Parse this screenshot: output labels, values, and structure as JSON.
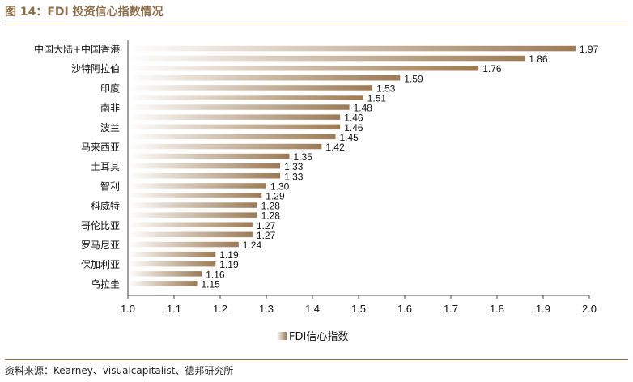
{
  "header": {
    "title": "图 14：FDI 投资信心指数情况"
  },
  "footer": {
    "source": "资料来源：Kearney、visualcapitalist、德邦研究所"
  },
  "colors": {
    "bar_dark": "#9c7a54",
    "bar_light": "#ffffff",
    "text": "#111111",
    "accent": "#8c6f4a"
  },
  "chart_data": {
    "type": "bar",
    "orientation": "horizontal",
    "title": "",
    "xlabel": "",
    "ylabel": "",
    "xlim": [
      1.0,
      2.0
    ],
    "xticks": [
      "1.0",
      "1.1",
      "1.2",
      "1.3",
      "1.4",
      "1.5",
      "1.6",
      "1.7",
      "1.8",
      "1.9",
      "2.0"
    ],
    "legend": "FDI信心指数",
    "legend_position": "bottom",
    "categories": [
      "中国大陆+中国香港",
      "",
      "沙特阿拉伯",
      "",
      "印度",
      "",
      "南非",
      "",
      "波兰",
      "",
      "马来西亚",
      "",
      "土耳其",
      "",
      "智利",
      "",
      "科威特",
      "",
      "哥伦比亚",
      "",
      "罗马尼亚",
      "",
      "保加利亚",
      "",
      "乌拉圭"
    ],
    "values": [
      1.97,
      1.86,
      1.76,
      1.59,
      1.53,
      1.51,
      1.48,
      1.46,
      1.46,
      1.45,
      1.42,
      1.35,
      1.33,
      1.33,
      1.3,
      1.29,
      1.28,
      1.28,
      1.27,
      1.27,
      1.24,
      1.19,
      1.19,
      1.16,
      1.15
    ],
    "value_labels": [
      "1.97",
      "1.86",
      "1.76",
      "1.59",
      "1.53",
      "1.51",
      "1.48",
      "1.46",
      "1.46",
      "1.45",
      "1.42",
      "1.35",
      "1.33",
      "1.33",
      "1.30",
      "1.29",
      "1.28",
      "1.28",
      "1.27",
      "1.27",
      "1.24",
      "1.19",
      "1.19",
      "1.16",
      "1.15"
    ]
  }
}
